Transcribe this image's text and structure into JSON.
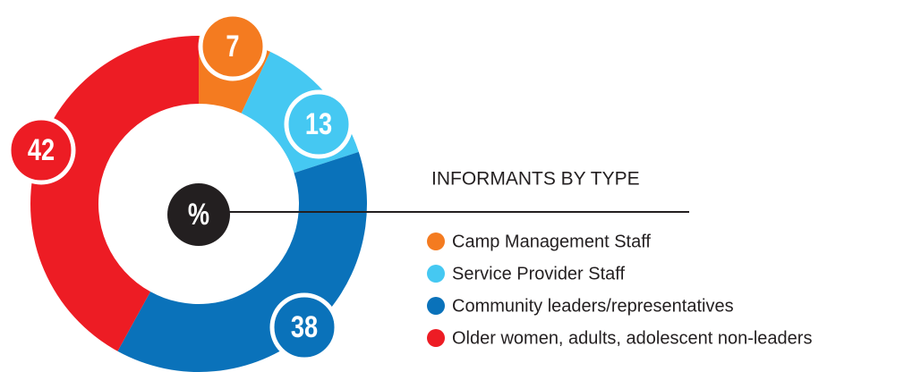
{
  "chart_data": {
    "type": "donut",
    "title": "INFORMANTS BY TYPE",
    "center_label": "%",
    "categories": [
      "Camp Management Staff",
      "Service Provider Staff",
      "Community leaders/representatives",
      "Older women, adults, adolescent non-leaders"
    ],
    "values": [
      7,
      13,
      38,
      42
    ],
    "colors": [
      "#f47b20",
      "#45c8f2",
      "#0a72ba",
      "#ed1c24"
    ],
    "legend": "right"
  }
}
